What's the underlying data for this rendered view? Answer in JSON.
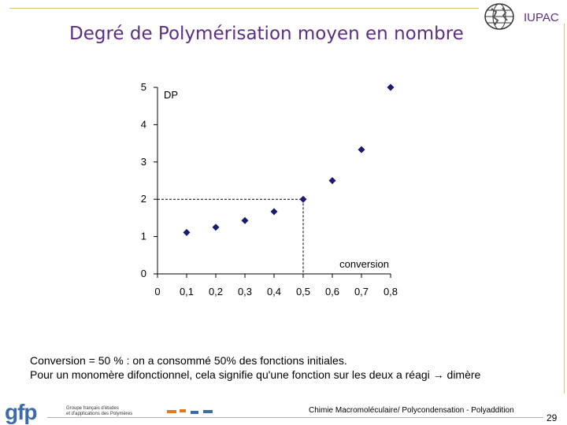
{
  "slide": {
    "title": "Degré de Polymérisation moyen en nombre",
    "org_label": "IUPAC",
    "caption_line1": "Conversion = 50 %  : on a consommé 50% des fonctions initiales.",
    "caption_line2": "Pour un monomère difonctionnel, cela signifie qu'une fonction sur les deux a réagi → dimère",
    "footer_logo": "gfp",
    "footer_logo_sub1": "Groupe français d'études",
    "footer_logo_sub2": "et d'applications des Polymères",
    "footer_course": "Chimie Macromoléculaire/ Polycondensation - Polyaddition",
    "page_number": "29"
  },
  "colors": {
    "title": "#5a2f82",
    "marker": "#1a1a6e",
    "axis": "#000000"
  },
  "chart_data": {
    "type": "scatter",
    "marker": "diamond",
    "ylabel": "DP",
    "xlabel": "conversion",
    "xlim": [
      0,
      0.8
    ],
    "ylim": [
      0,
      5
    ],
    "x_ticks": [
      "0",
      "0,1",
      "0,2",
      "0,3",
      "0,4",
      "0,5",
      "0,6",
      "0,7",
      "0,8"
    ],
    "y_ticks": [
      "0",
      "1",
      "2",
      "3",
      "4",
      "5"
    ],
    "points": [
      {
        "x": 0.1,
        "y": 1.11
      },
      {
        "x": 0.2,
        "y": 1.25
      },
      {
        "x": 0.3,
        "y": 1.43
      },
      {
        "x": 0.4,
        "y": 1.67
      },
      {
        "x": 0.5,
        "y": 2.0
      },
      {
        "x": 0.6,
        "y": 2.5
      },
      {
        "x": 0.7,
        "y": 3.33
      },
      {
        "x": 0.8,
        "y": 5.0
      }
    ],
    "reference_point": {
      "x": 0.5,
      "y": 2.0
    }
  }
}
